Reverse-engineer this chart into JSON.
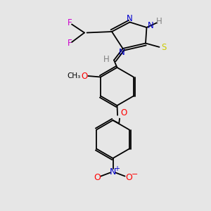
{
  "background_color": "#e6e6e6",
  "fig_width": 3.0,
  "fig_height": 3.0,
  "dpi": 100,
  "bond_lw": 1.3,
  "bond_color": "#000000",
  "colors": {
    "N": "#0000cc",
    "S": "#cccc00",
    "F": "#cc00cc",
    "O": "#ff0000",
    "H": "#808080",
    "C": "#000000",
    "NO2_N": "#0000cc",
    "NO2_O": "#ff0000"
  }
}
